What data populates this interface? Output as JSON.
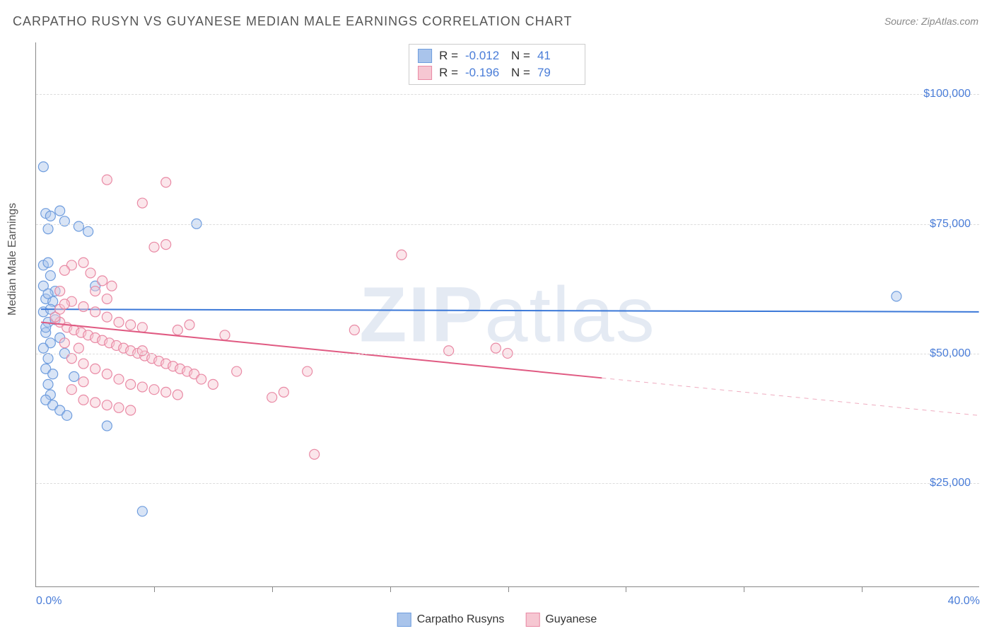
{
  "title": "CARPATHO RUSYN VS GUYANESE MEDIAN MALE EARNINGS CORRELATION CHART",
  "source": "Source: ZipAtlas.com",
  "y_axis_label": "Median Male Earnings",
  "watermark": {
    "prefix": "ZIP",
    "suffix": "atlas"
  },
  "chart": {
    "type": "scatter",
    "background_color": "#ffffff",
    "grid_color": "#dddddd",
    "axis_color": "#888888",
    "x_range": [
      0,
      40
    ],
    "y_range": [
      5000,
      110000
    ],
    "x_ticks": [
      0,
      40
    ],
    "x_tick_labels": [
      "0.0%",
      "40.0%"
    ],
    "x_minor_ticks": [
      5,
      10,
      15,
      20,
      25,
      30,
      35
    ],
    "y_ticks": [
      25000,
      50000,
      75000,
      100000
    ],
    "y_tick_labels": [
      "$25,000",
      "$50,000",
      "$75,000",
      "$100,000"
    ],
    "tick_label_color": "#4a7dd8",
    "tick_label_fontsize": 16,
    "marker_radius": 7,
    "marker_opacity": 0.45,
    "trendline_width": 2
  },
  "series": [
    {
      "name": "Carpatho Rusyns",
      "fill_color": "#a9c4eb",
      "stroke_color": "#6f9dde",
      "line_color": "#3b78d8",
      "R": "-0.012",
      "N": "41",
      "trendline": {
        "x1": 0.2,
        "y1": 58500,
        "x2": 40,
        "y2": 58000,
        "dash_from_x": null
      },
      "points": [
        [
          0.3,
          86000
        ],
        [
          0.4,
          77000
        ],
        [
          0.6,
          76500
        ],
        [
          1.0,
          77500
        ],
        [
          0.5,
          74000
        ],
        [
          1.2,
          75500
        ],
        [
          0.3,
          67000
        ],
        [
          0.5,
          67500
        ],
        [
          0.6,
          65000
        ],
        [
          0.8,
          62000
        ],
        [
          0.4,
          60500
        ],
        [
          0.7,
          60000
        ],
        [
          0.3,
          58000
        ],
        [
          0.5,
          56000
        ],
        [
          0.4,
          54000
        ],
        [
          0.6,
          52000
        ],
        [
          0.3,
          51000
        ],
        [
          0.5,
          49000
        ],
        [
          0.4,
          47000
        ],
        [
          0.7,
          46000
        ],
        [
          0.5,
          44000
        ],
        [
          0.6,
          42000
        ],
        [
          0.4,
          41000
        ],
        [
          0.7,
          40000
        ],
        [
          1.0,
          39000
        ],
        [
          1.3,
          38000
        ],
        [
          1.6,
          45500
        ],
        [
          1.8,
          74500
        ],
        [
          2.2,
          73500
        ],
        [
          2.5,
          63000
        ],
        [
          3.0,
          36000
        ],
        [
          4.5,
          19500
        ],
        [
          6.8,
          75000
        ],
        [
          36.5,
          61000
        ],
        [
          0.3,
          63000
        ],
        [
          0.4,
          55000
        ],
        [
          0.6,
          58500
        ],
        [
          0.8,
          56500
        ],
        [
          1.0,
          53000
        ],
        [
          1.2,
          50000
        ],
        [
          0.5,
          61500
        ]
      ]
    },
    {
      "name": "Guyanese",
      "fill_color": "#f6c7d2",
      "stroke_color": "#e98aa5",
      "line_color": "#e05a82",
      "R": "-0.196",
      "N": "79",
      "trendline": {
        "x1": 0.2,
        "y1": 56000,
        "x2": 40,
        "y2": 38000,
        "dash_from_x": 24
      },
      "points": [
        [
          3.0,
          83500
        ],
        [
          5.5,
          83000
        ],
        [
          4.5,
          79000
        ],
        [
          1.5,
          67000
        ],
        [
          2.0,
          67500
        ],
        [
          1.2,
          66000
        ],
        [
          2.3,
          65500
        ],
        [
          2.8,
          64000
        ],
        [
          3.2,
          63000
        ],
        [
          1.0,
          62000
        ],
        [
          1.5,
          60000
        ],
        [
          2.0,
          59000
        ],
        [
          2.5,
          58000
        ],
        [
          3.0,
          57000
        ],
        [
          3.5,
          56000
        ],
        [
          4.0,
          55500
        ],
        [
          4.5,
          55000
        ],
        [
          5.0,
          70500
        ],
        [
          5.5,
          71000
        ],
        [
          6.0,
          54500
        ],
        [
          1.0,
          56000
        ],
        [
          1.3,
          55000
        ],
        [
          1.6,
          54500
        ],
        [
          1.9,
          54000
        ],
        [
          2.2,
          53500
        ],
        [
          2.5,
          53000
        ],
        [
          2.8,
          52500
        ],
        [
          3.1,
          52000
        ],
        [
          3.4,
          51500
        ],
        [
          3.7,
          51000
        ],
        [
          4.0,
          50500
        ],
        [
          4.3,
          50000
        ],
        [
          4.6,
          49500
        ],
        [
          4.9,
          49000
        ],
        [
          5.2,
          48500
        ],
        [
          5.5,
          48000
        ],
        [
          5.8,
          47500
        ],
        [
          6.1,
          47000
        ],
        [
          6.4,
          46500
        ],
        [
          6.7,
          46000
        ],
        [
          1.5,
          49000
        ],
        [
          2.0,
          48000
        ],
        [
          2.5,
          47000
        ],
        [
          3.0,
          46000
        ],
        [
          3.5,
          45000
        ],
        [
          4.0,
          44000
        ],
        [
          4.5,
          43500
        ],
        [
          5.0,
          43000
        ],
        [
          5.5,
          42500
        ],
        [
          6.0,
          42000
        ],
        [
          2.0,
          41000
        ],
        [
          2.5,
          40500
        ],
        [
          3.0,
          40000
        ],
        [
          3.5,
          39500
        ],
        [
          4.0,
          39000
        ],
        [
          4.5,
          50500
        ],
        [
          1.2,
          52000
        ],
        [
          1.8,
          51000
        ],
        [
          7.0,
          45000
        ],
        [
          7.5,
          44000
        ],
        [
          8.0,
          53500
        ],
        [
          8.5,
          46500
        ],
        [
          6.5,
          55500
        ],
        [
          3.0,
          60500
        ],
        [
          10.0,
          41500
        ],
        [
          10.5,
          42500
        ],
        [
          11.5,
          46500
        ],
        [
          11.8,
          30500
        ],
        [
          13.5,
          54500
        ],
        [
          15.5,
          69000
        ],
        [
          17.5,
          50500
        ],
        [
          19.5,
          51000
        ],
        [
          20.0,
          50000
        ],
        [
          0.8,
          57000
        ],
        [
          1.0,
          58500
        ],
        [
          1.2,
          59500
        ],
        [
          1.5,
          43000
        ],
        [
          2.0,
          44500
        ],
        [
          2.5,
          62000
        ]
      ]
    }
  ],
  "stats_legend_labels": {
    "R_label": "R =",
    "N_label": "N ="
  },
  "bottom_legend": [
    {
      "label": "Carpatho Rusyns",
      "series": 0
    },
    {
      "label": "Guyanese",
      "series": 1
    }
  ]
}
